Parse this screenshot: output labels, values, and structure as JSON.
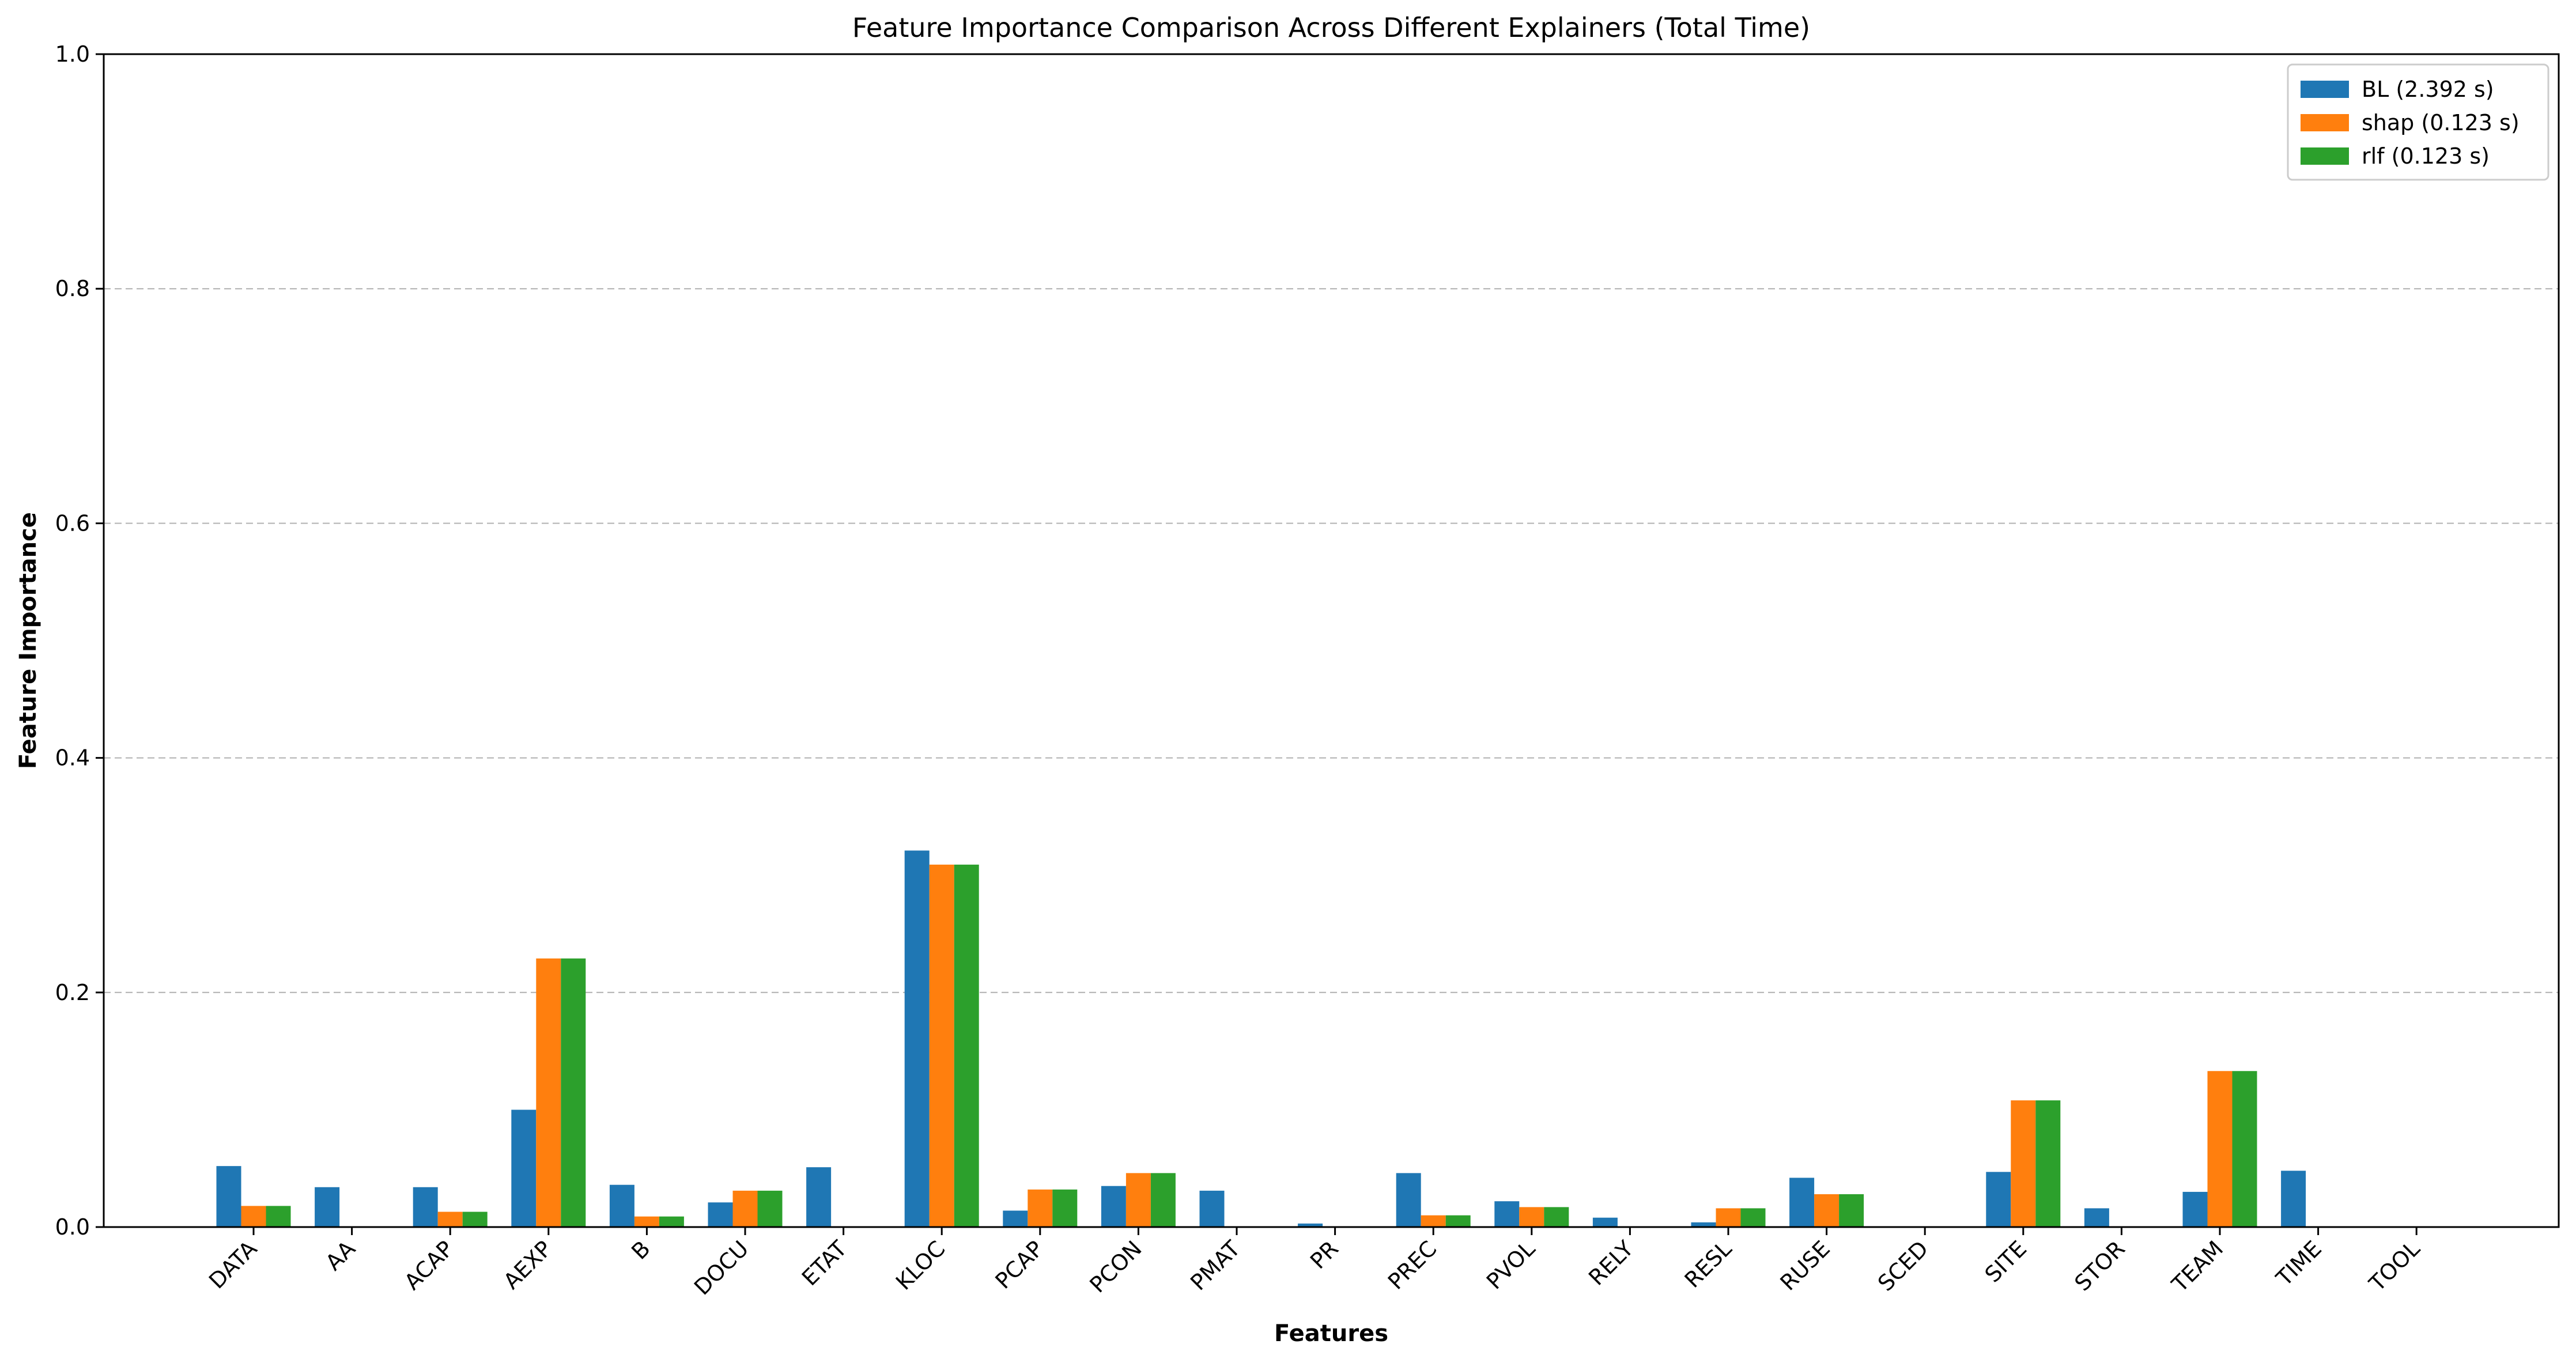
{
  "chart_data": {
    "type": "bar",
    "title": "Feature Importance Comparison Across Different Explainers (Total Time)",
    "xlabel": "Features",
    "ylabel": "Feature Importance",
    "ylim": [
      0,
      1.0
    ],
    "yticks": [
      "0.0",
      "0.2",
      "0.4",
      "0.6",
      "0.8",
      "1.0"
    ],
    "grid": "y-dashed",
    "legend_position": "top-right",
    "categories": [
      "DATA",
      "AA",
      "ACAP",
      "AEXP",
      "B",
      "DOCU",
      "ETAT",
      "KLOC",
      "PCAP",
      "PCON",
      "PMAT",
      "PR",
      "PREC",
      "PVOL",
      "RELY",
      "RESL",
      "RUSE",
      "SCED",
      "SITE",
      "STOR",
      "TEAM",
      "TIME",
      "TOOL"
    ],
    "series": [
      {
        "name": "BL (2.392 s)",
        "color": "#1f77b4",
        "values": [
          0.052,
          0.034,
          0.034,
          0.1,
          0.036,
          0.021,
          0.051,
          0.321,
          0.014,
          0.035,
          0.031,
          0.003,
          0.046,
          0.022,
          0.008,
          0.004,
          0.042,
          0.0,
          0.047,
          0.016,
          0.03,
          0.048,
          0.0
        ]
      },
      {
        "name": "shap (0.123 s)",
        "color": "#ff7f0e",
        "values": [
          0.018,
          0.0,
          0.013,
          0.229,
          0.009,
          0.031,
          0.0,
          0.309,
          0.032,
          0.046,
          0.0,
          0.0,
          0.01,
          0.017,
          0.0,
          0.016,
          0.028,
          0.0,
          0.108,
          0.0,
          0.133,
          0.0,
          0.0
        ]
      },
      {
        "name": "rlf (0.123 s)",
        "color": "#2ca02c",
        "values": [
          0.018,
          0.0,
          0.013,
          0.229,
          0.009,
          0.031,
          0.0,
          0.309,
          0.032,
          0.046,
          0.0,
          0.0,
          0.01,
          0.017,
          0.0,
          0.016,
          0.028,
          0.0,
          0.108,
          0.0,
          0.133,
          0.0,
          0.0
        ]
      }
    ]
  }
}
